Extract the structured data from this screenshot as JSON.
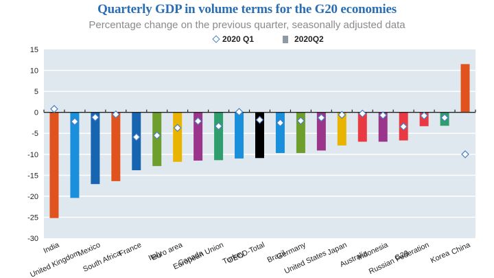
{
  "chart_data": {
    "type": "bar",
    "title": "Quarterly GDP in volume terms for the G20 economies",
    "subtitle": "Percentage change on the previous quarter, seasonally adjusted data",
    "xlabel": "",
    "ylabel": "",
    "ylim": [
      -30,
      15
    ],
    "yticks": [
      15,
      10,
      5,
      0,
      -5,
      -10,
      -15,
      -20,
      -25,
      -30
    ],
    "grid": true,
    "legend_position": "top-center",
    "categories": [
      "India",
      "United Kingdom",
      "Mexico",
      "South Africa",
      "France",
      "Italy",
      "Euro area",
      "Canada",
      "European Union",
      "Turkey",
      "OECD-Total",
      "Brazil",
      "Germany",
      "United States",
      "Japan",
      "Australia",
      "Indonesia",
      "G20",
      "Russian Federation",
      "Korea",
      "China"
    ],
    "series": [
      {
        "name": "2020Q2",
        "marker": "bar",
        "values": [
          -25.2,
          -20.4,
          -17.1,
          -16.4,
          -13.8,
          -12.8,
          -11.8,
          -11.5,
          -11.4,
          -11.0,
          -10.9,
          -9.7,
          -9.7,
          -9.1,
          -7.9,
          -7.0,
          -7.0,
          -6.7,
          -3.3,
          -3.2,
          11.5
        ],
        "colors": [
          "#e0531f",
          "#1a8fdb",
          "#1765b0",
          "#e0531f",
          "#1765b0",
          "#6e9e2c",
          "#e8b400",
          "#9b358b",
          "#2f9e6e",
          "#1a8fdb",
          "#000000",
          "#1a8fdb",
          "#6e9e2c",
          "#9b358b",
          "#e8b400",
          "#e93a44",
          "#9b358b",
          "#e93a44",
          "#e93a44",
          "#2f9e6e",
          "#e0531f"
        ]
      },
      {
        "name": "2020 Q1",
        "marker": "diamond",
        "values": [
          0.8,
          -2.2,
          -1.2,
          -0.5,
          -5.9,
          -5.5,
          -3.7,
          -2.1,
          -3.3,
          0.1,
          -1.8,
          -2.5,
          -2.0,
          -1.3,
          -0.6,
          -0.3,
          -0.7,
          -3.4,
          -0.8,
          -1.3,
          -10.0
        ]
      }
    ],
    "legend": [
      {
        "label": "2020 Q1",
        "symbol": "diamond",
        "color": "#4a7fc1"
      },
      {
        "label": "2020Q2",
        "symbol": "square",
        "color": "#8e9aa3"
      }
    ],
    "colors": {
      "plot_background": "#dfe8ef",
      "gridline": "#ffffff",
      "title": "#2a6db3",
      "subtitle": "#8a8a8a",
      "diamond_edge": "#4a7fc1"
    }
  }
}
